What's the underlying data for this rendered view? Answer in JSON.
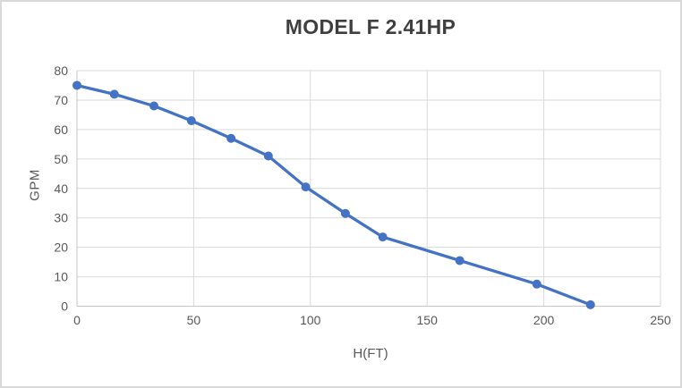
{
  "chart": {
    "title": "MODEL F 2.41HP",
    "x_axis_title": "H(FT)",
    "y_axis_title": "GPM"
  },
  "chart_data": {
    "type": "line",
    "title": "MODEL F 2.41HP",
    "xlabel": "H(FT)",
    "ylabel": "GPM",
    "x": [
      0,
      16,
      33,
      49,
      66,
      82,
      98,
      115,
      131,
      164,
      197,
      220
    ],
    "y": [
      75,
      72,
      68,
      63,
      57,
      51,
      40.5,
      31.5,
      23.5,
      15.5,
      7.5,
      0.5
    ],
    "xlim": [
      0,
      250
    ],
    "ylim": [
      0,
      80
    ],
    "x_ticks": [
      0,
      50,
      100,
      150,
      200,
      250
    ],
    "y_ticks": [
      0,
      10,
      20,
      30,
      40,
      50,
      60,
      70,
      80
    ],
    "grid": true,
    "legend": false,
    "marker": "circle"
  },
  "colors": {
    "line": "#4472C4",
    "marker": "#4472C4",
    "gridline": "#D9D9D9",
    "axis_line": "#C6C6C6",
    "title_text": "#3F3F3F",
    "axis_text": "#595959",
    "chart_border": "#D9D9D9",
    "background": "#FFFFFF"
  }
}
